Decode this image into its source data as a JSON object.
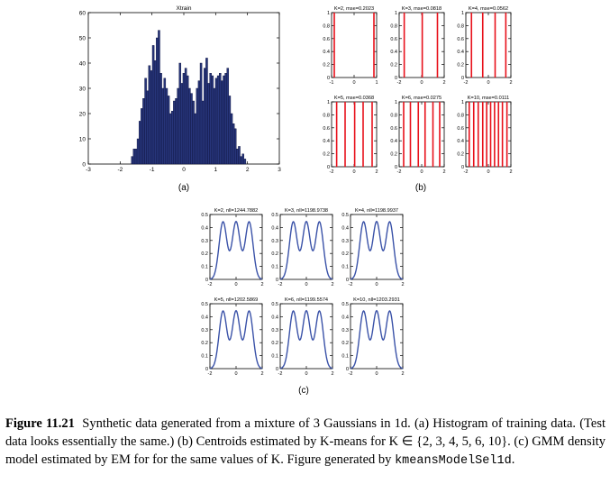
{
  "figure": {
    "label": "Figure 11.21",
    "caption_text": "Synthetic data generated from a mixture of 3 Gaussians in 1d. (a) Histogram of training data. (Test data looks essentially the same.) (b) Centroids estimated by K-means for K ∈ {2, 3, 4, 5, 6, 10}. (c) GMM density model estimated by EM for for the same values of K. Figure generated by",
    "caption_code": "kmeansModelSel1d",
    "caption_end": "."
  },
  "chart_data": [
    {
      "id": "a",
      "panel_label": "(a)",
      "type": "bar",
      "title": "Xtrain",
      "xlim": [
        -3,
        3
      ],
      "ylim": [
        0,
        60
      ],
      "x_ticks": [
        -3,
        -2,
        -1,
        0,
        1,
        2,
        3
      ],
      "y_ticks": [
        0,
        10,
        20,
        30,
        40,
        50,
        60
      ],
      "bar_color": "#27357a",
      "bin_edges_start": -1.65,
      "bin_width": 0.06,
      "values": [
        3,
        6,
        6,
        10,
        17,
        22,
        26,
        34,
        29,
        39,
        37,
        47,
        41,
        50,
        53,
        36,
        30,
        34,
        30,
        27,
        20,
        21,
        25,
        26,
        30,
        40,
        32,
        36,
        38,
        35,
        30,
        28,
        25,
        20,
        30,
        33,
        40,
        25,
        38,
        42,
        32,
        36,
        35,
        30,
        34,
        35,
        36,
        33,
        35,
        36,
        38,
        27,
        20,
        16,
        14,
        6,
        7,
        3,
        4,
        2
      ]
    },
    {
      "id": "b",
      "panel_label": "(b)",
      "type": "bar",
      "line_color": "#e8101a",
      "ylim": [
        0,
        1
      ],
      "y_ticks": [
        0,
        0.2,
        0.4,
        0.6,
        0.8,
        1
      ],
      "panels": [
        {
          "title": "K=2, mse=0.2023",
          "xlim": [
            -1,
            1
          ],
          "x_ticks": [
            -1,
            0,
            1
          ],
          "centroids": [
            -0.88,
            0.88
          ]
        },
        {
          "title": "K=3, mse=0.0818",
          "xlim": [
            -2,
            2
          ],
          "x_ticks": [
            -2,
            0,
            2
          ],
          "centroids": [
            -1.55,
            0.05,
            1.4
          ]
        },
        {
          "title": "K=4, mse=0.0562",
          "xlim": [
            -2,
            2
          ],
          "x_ticks": [
            -2,
            0,
            2
          ],
          "centroids": [
            -1.5,
            -0.5,
            0.6,
            1.55
          ]
        },
        {
          "title": "K=5, mse=0.0368",
          "xlim": [
            -2,
            2
          ],
          "x_ticks": [
            -2,
            0,
            2
          ],
          "centroids": [
            -1.55,
            -0.8,
            0.05,
            0.8,
            1.6
          ]
        },
        {
          "title": "K=6, mse=0.0275",
          "xlim": [
            -2,
            2
          ],
          "x_ticks": [
            -2,
            0,
            2
          ],
          "centroids": [
            -1.6,
            -1.0,
            -0.3,
            0.3,
            1.0,
            1.6
          ]
        },
        {
          "title": "K=10, mse=0.0111",
          "xlim": [
            -2,
            2
          ],
          "x_ticks": [
            -2,
            0,
            2
          ],
          "centroids": [
            -1.7,
            -1.3,
            -0.9,
            -0.5,
            -0.15,
            0.2,
            0.55,
            0.9,
            1.25,
            1.65
          ]
        }
      ]
    },
    {
      "id": "c",
      "panel_label": "(c)",
      "type": "line",
      "line_color": "#3a52a8",
      "xlim": [
        -2,
        2
      ],
      "x_ticks": [
        -2,
        0,
        2
      ],
      "ylim": [
        0,
        0.5
      ],
      "y_ticks": [
        0,
        0.1,
        0.2,
        0.3,
        0.4,
        0.5
      ],
      "components": [
        {
          "mean": -1.0,
          "sd": 0.3,
          "weight": 0.333
        },
        {
          "mean": 0.0,
          "sd": 0.3,
          "weight": 0.333
        },
        {
          "mean": 1.0,
          "sd": 0.3,
          "weight": 0.333
        }
      ],
      "panels": [
        {
          "title": "K=2, nll=1244.7882"
        },
        {
          "title": "K=3, nll=1198.9738"
        },
        {
          "title": "K=4, nll=1198.9937"
        },
        {
          "title": "K=5, nll=1202.5869"
        },
        {
          "title": "K=6, nll=1199.5574"
        },
        {
          "title": "K=10, nll=1203.2931"
        }
      ]
    }
  ]
}
